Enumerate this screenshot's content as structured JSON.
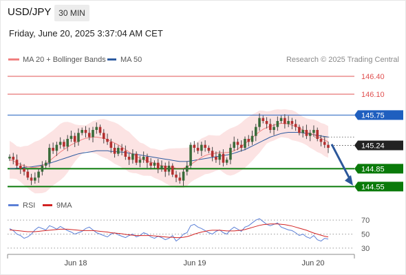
{
  "header": {
    "symbol": "USD/JPY",
    "timeframe": "30 MIN",
    "datetime": "Friday, June 20, 2025 3:37:04 AM CET"
  },
  "legend": {
    "items": [
      {
        "label": "MA 20 + Bollinger Bands",
        "color": "#f08080"
      },
      {
        "label": "MA 50",
        "color": "#2c5aa0"
      }
    ],
    "credit": "Research © 2025 Trading Central"
  },
  "rsi_legend": {
    "items": [
      {
        "label": "RSI",
        "color": "#5b7fd6"
      },
      {
        "label": "9MA",
        "color": "#d22222"
      }
    ]
  },
  "colors": {
    "resistance": "#e05050",
    "pivot": "#1f5fbf",
    "support": "#0a7a0a",
    "candle_up": "#3a6b3a",
    "candle_down": "#b33030",
    "band_fill": "#fbdada",
    "arrow": "#2b579a"
  },
  "chart_data": [
    {
      "type": "candlestick",
      "title": "",
      "x_ticks": [
        "Jun 18",
        "Jun 19",
        "Jun 20"
      ],
      "ylim": [
        144.45,
        146.55
      ],
      "levels": [
        {
          "value": 146.4,
          "label": "146.40",
          "kind": "resistance"
        },
        {
          "value": 146.1,
          "label": "146.10",
          "kind": "resistance"
        },
        {
          "value": 145.75,
          "label": "145.75",
          "kind": "pivot"
        },
        {
          "value": 144.85,
          "label": "144.85",
          "kind": "support"
        },
        {
          "value": 144.55,
          "label": "144.55",
          "kind": "support"
        }
      ],
      "last_price": {
        "value": 145.24,
        "label": "145.24"
      },
      "forecast_arrow": {
        "from_value": 145.26,
        "to_value": 144.58
      },
      "close": [
        145.05,
        145.0,
        144.9,
        144.85,
        144.8,
        144.7,
        144.65,
        144.7,
        144.8,
        144.9,
        144.95,
        145.2,
        145.15,
        145.25,
        145.3,
        145.22,
        145.35,
        145.4,
        145.3,
        145.45,
        145.5,
        145.45,
        145.38,
        145.5,
        145.55,
        145.45,
        145.35,
        145.3,
        145.2,
        145.1,
        145.2,
        145.15,
        145.05,
        145.0,
        145.1,
        144.95,
        145.0,
        145.05,
        144.95,
        144.9,
        144.95,
        144.85,
        144.9,
        144.8,
        144.9,
        144.75,
        144.7,
        144.65,
        144.8,
        144.9,
        145.25,
        145.2,
        145.15,
        145.25,
        145.2,
        145.15,
        145.05,
        145.0,
        145.1,
        144.95,
        145.0,
        145.2,
        145.3,
        145.25,
        145.2,
        145.35,
        145.3,
        145.4,
        145.55,
        145.7,
        145.65,
        145.6,
        145.5,
        145.55,
        145.65,
        145.7,
        145.6,
        145.65,
        145.6,
        145.55,
        145.45,
        145.5,
        145.4,
        145.45,
        145.5,
        145.35,
        145.3,
        145.25,
        145.2
      ],
      "ma20": [
        145.0,
        144.98,
        144.95,
        144.92,
        144.9,
        144.88,
        144.87,
        144.87,
        144.88,
        144.9,
        144.93,
        144.98,
        145.03,
        145.08,
        145.13,
        145.17,
        145.21,
        145.25,
        145.28,
        145.31,
        145.34,
        145.36,
        145.37,
        145.38,
        145.38,
        145.37,
        145.36,
        145.34,
        145.31,
        145.28,
        145.25,
        145.21,
        145.17,
        145.13,
        145.09,
        145.06,
        145.02,
        145.0,
        144.98,
        144.96,
        144.94,
        144.92,
        144.9,
        144.89,
        144.88,
        144.87,
        144.86,
        144.86,
        144.86,
        144.88,
        144.92,
        144.96,
        145.0,
        145.04,
        145.07,
        145.09,
        145.1,
        145.11,
        145.12,
        145.12,
        145.12,
        145.13,
        145.15,
        145.18,
        145.22,
        145.27,
        145.32,
        145.37,
        145.42,
        145.47,
        145.51,
        145.54,
        145.56,
        145.58,
        145.6,
        145.61,
        145.61,
        145.6,
        145.58,
        145.56,
        145.53,
        145.5,
        145.47,
        145.44,
        145.42,
        145.39,
        145.36,
        145.33,
        145.3
      ],
      "ma50": [
        144.85,
        144.85,
        144.86,
        144.86,
        144.87,
        144.88,
        144.88,
        144.89,
        144.9,
        144.91,
        144.92,
        144.94,
        144.96,
        144.98,
        145.0,
        145.02,
        145.04,
        145.06,
        145.08,
        145.1,
        145.11,
        145.12,
        145.13,
        145.14,
        145.15,
        145.15,
        145.15,
        145.15,
        145.14,
        145.14,
        145.13,
        145.13,
        145.12,
        145.11,
        145.1,
        145.09,
        145.08,
        145.07,
        145.06,
        145.05,
        145.04,
        145.03,
        145.02,
        145.01,
        145.0,
        144.99,
        144.98,
        144.97,
        144.97,
        144.97,
        144.98,
        144.99,
        145.0,
        145.01,
        145.02,
        145.03,
        145.04,
        145.05,
        145.06,
        145.07,
        145.08,
        145.09,
        145.11,
        145.13,
        145.15,
        145.17,
        145.2,
        145.23,
        145.26,
        145.29,
        145.32,
        145.35,
        145.38,
        145.4,
        145.42,
        145.44,
        145.45,
        145.46,
        145.46,
        145.46,
        145.46,
        145.45,
        145.44,
        145.43,
        145.42,
        145.41,
        145.4,
        145.39,
        145.38
      ]
    },
    {
      "type": "line",
      "title": "RSI",
      "ylim": [
        25,
        78
      ],
      "y_ticks": [
        70,
        50,
        30
      ],
      "rsi": [
        58,
        55,
        50,
        48,
        44,
        46,
        50,
        56,
        60,
        58,
        56,
        62,
        60,
        57,
        61,
        58,
        55,
        53,
        50,
        52,
        54,
        58,
        60,
        56,
        52,
        50,
        48,
        46,
        50,
        52,
        49,
        47,
        45,
        48,
        50,
        46,
        48,
        52,
        50,
        46,
        44,
        47,
        45,
        42,
        44,
        48,
        40,
        44,
        50,
        52,
        62,
        64,
        60,
        58,
        55,
        52,
        50,
        54,
        56,
        52,
        50,
        56,
        60,
        57,
        54,
        60,
        62,
        66,
        70,
        72,
        68,
        64,
        62,
        64,
        66,
        60,
        58,
        56,
        55,
        52,
        48,
        50,
        46,
        44,
        48,
        42,
        40,
        44,
        43
      ],
      "ma9": [
        56,
        55.5,
        55,
        54.5,
        54,
        53.5,
        53.5,
        53.5,
        54,
        54.5,
        55,
        55.5,
        56,
        56.5,
        57,
        57,
        57,
        56.5,
        56,
        55.5,
        55,
        55,
        55,
        55,
        54.5,
        54,
        53.5,
        53,
        52,
        51.5,
        51,
        50.5,
        49.5,
        49,
        48.5,
        48,
        48,
        48,
        48,
        48,
        47.5,
        47,
        46.5,
        46,
        45.5,
        45.5,
        45,
        45,
        45.5,
        46.5,
        48,
        50,
        51.5,
        53,
        54,
        55,
        55.5,
        55.5,
        55.5,
        55,
        54.5,
        54.5,
        54.5,
        55,
        55.5,
        56.5,
        58,
        59.5,
        61,
        62.5,
        63.5,
        64,
        64.5,
        64.5,
        64.5,
        64,
        63.5,
        62.5,
        61.5,
        60,
        58.5,
        57,
        55.5,
        53.5,
        51.5,
        50,
        48.5,
        47,
        46
      ]
    }
  ]
}
